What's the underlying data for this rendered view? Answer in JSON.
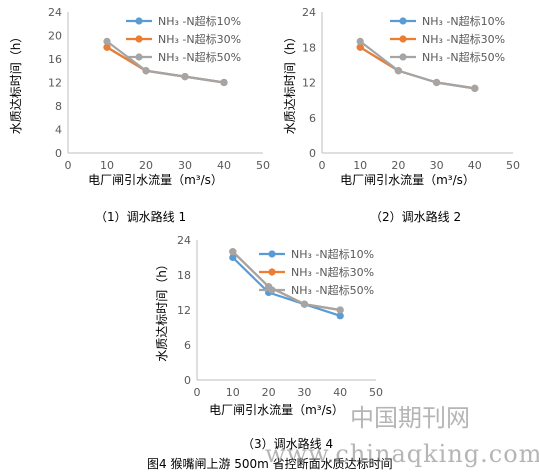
{
  "chart_data": [
    {
      "type": "line",
      "x": [
        10,
        20,
        30,
        40
      ],
      "xlim": [
        0,
        50
      ],
      "ylim": [
        0,
        24
      ],
      "xticks": [
        0,
        10,
        20,
        30,
        40,
        50
      ],
      "yticks": [
        0,
        4,
        8,
        12,
        16,
        20,
        24
      ],
      "xlabel": "电厂闸引水流量（m³/s）",
      "ylabel": "水质达标时间（h）",
      "series": [
        {
          "name": "NH₃ -N超标10%",
          "values": [
            18,
            14,
            13,
            12
          ]
        },
        {
          "name": "NH₃ -N超标30%",
          "values": [
            18,
            14,
            13,
            12
          ]
        },
        {
          "name": "NH₃ -N超标50%",
          "values": [
            19,
            14,
            13,
            12
          ]
        }
      ],
      "grid": false,
      "legend_position": "top-right"
    },
    {
      "type": "line",
      "x": [
        10,
        20,
        30,
        40
      ],
      "xlim": [
        0,
        50
      ],
      "ylim": [
        0,
        24
      ],
      "xticks": [
        0,
        10,
        20,
        30,
        40,
        50
      ],
      "yticks": [
        0,
        6,
        12,
        18,
        24
      ],
      "xlabel": "电厂闸引水流量（m³/s）",
      "ylabel": "水质达标时间（h）",
      "series": [
        {
          "name": "NH₃ -N超标10%",
          "values": [
            18,
            14,
            12,
            11
          ]
        },
        {
          "name": "NH₃ -N超标30%",
          "values": [
            18,
            14,
            12,
            11
          ]
        },
        {
          "name": "NH₃ -N超标50%",
          "values": [
            19,
            14,
            12,
            11
          ]
        }
      ],
      "grid": false,
      "legend_position": "top-right"
    },
    {
      "type": "line",
      "x": [
        10,
        20,
        30,
        40
      ],
      "xlim": [
        0,
        50
      ],
      "ylim": [
        0,
        24
      ],
      "xticks": [
        0,
        10,
        20,
        30,
        40,
        50
      ],
      "yticks": [
        0,
        6,
        12,
        18,
        24
      ],
      "xlabel": "电厂闸引水流量（m³/s）",
      "ylabel": "水质达标时间（h）",
      "series": [
        {
          "name": "NH₃ -N超标10%",
          "values": [
            21,
            15,
            13,
            11
          ]
        },
        {
          "name": "NH₃ -N超标30%",
          "values": [
            22,
            16,
            13,
            12
          ]
        },
        {
          "name": "NH₃ -N超标50%",
          "values": [
            22,
            16,
            13,
            12
          ]
        }
      ],
      "grid": false,
      "legend_position": "top-right"
    }
  ],
  "colors": {
    "series": [
      "#5b9bd5",
      "#ed7d31",
      "#a5a5a5"
    ],
    "axis": "#bfbfbf",
    "tick_text": "#595959"
  },
  "captions": {
    "chart1": "（1）调水路线 1",
    "chart2": "（2）调水路线 2",
    "chart3": "（3）调水路线 4",
    "figure": "图4 猴嘴闸上游 500m 省控断面水质达标时间"
  },
  "watermark": {
    "line1": "中国期刊网",
    "line2": "www.chinaqking.com"
  }
}
